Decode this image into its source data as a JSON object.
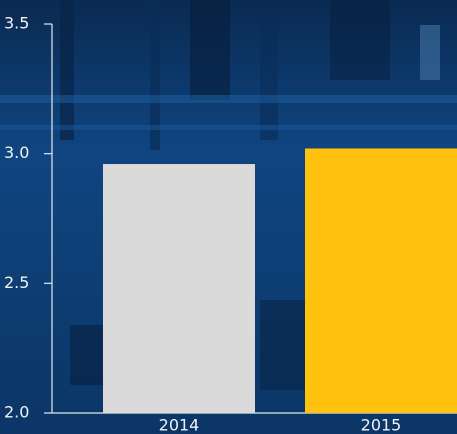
{
  "chart_data": {
    "type": "bar",
    "categories": [
      "2014",
      "2015"
    ],
    "values": [
      2.96,
      3.02
    ],
    "colors": [
      "#dadada",
      "#ffc20e"
    ],
    "ylim": [
      2,
      3.5
    ],
    "yticks": [
      {
        "value": 2,
        "label": "2.0"
      },
      2.5,
      {
        "value": 3,
        "label": "3.0"
      },
      3.5
    ]
  }
}
